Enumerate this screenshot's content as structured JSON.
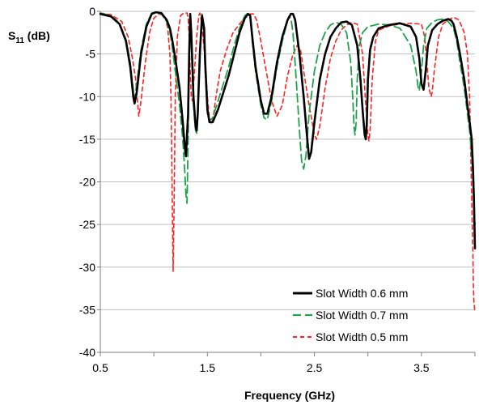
{
  "chart_data": {
    "type": "line",
    "title": "",
    "xlabel": "Frequency (GHz)",
    "ylabel": "S11 (dB)",
    "ylabel_parts": {
      "main": "S",
      "sub": "11",
      "tail": " (dB)"
    },
    "xlim": [
      0.5,
      4.0
    ],
    "ylim": [
      -40,
      0
    ],
    "x_ticks": [
      0.5,
      1.5,
      2.5,
      3.5
    ],
    "x_tick_labels": [
      "0.5",
      "1.5",
      "2.5",
      "3.5"
    ],
    "y_ticks": [
      0,
      -5,
      -10,
      -15,
      -20,
      -25,
      -30,
      -35,
      -40
    ],
    "y_tick_labels": [
      "0",
      "-5",
      "-10",
      "-15",
      "-20",
      "-25",
      "-30",
      "-35",
      "-40"
    ],
    "grid": "horizontal",
    "legend_position": "bottom-right",
    "series": [
      {
        "name": "Slot Width 0.6 mm",
        "color": "#000000",
        "dash": "solid",
        "x": [
          0.5,
          0.6,
          0.68,
          0.74,
          0.78,
          0.81,
          0.82,
          0.84,
          0.88,
          0.93,
          0.98,
          1.02,
          1.07,
          1.12,
          1.15,
          1.17,
          1.2,
          1.24,
          1.27,
          1.29,
          1.3,
          1.32,
          1.33,
          1.34,
          1.35,
          1.37,
          1.39,
          1.4,
          1.41,
          1.43,
          1.45,
          1.47,
          1.48,
          1.5,
          1.52,
          1.55,
          1.6,
          1.65,
          1.7,
          1.75,
          1.8,
          1.85,
          1.88,
          1.9,
          1.92,
          1.95,
          2.0,
          2.03,
          2.06,
          2.1,
          2.15,
          2.2,
          2.25,
          2.28,
          2.3,
          2.32,
          2.36,
          2.4,
          2.43,
          2.45,
          2.47,
          2.5,
          2.55,
          2.6,
          2.65,
          2.7,
          2.75,
          2.8,
          2.85,
          2.9,
          2.93,
          2.95,
          2.97,
          2.98,
          2.99,
          3.0,
          3.02,
          3.05,
          3.1,
          3.2,
          3.3,
          3.4,
          3.45,
          3.48,
          3.5,
          3.52,
          3.54,
          3.56,
          3.6,
          3.65,
          3.7,
          3.75,
          3.78,
          3.8,
          3.83,
          3.86,
          3.9,
          3.93,
          3.95,
          3.97,
          3.98,
          3.99,
          4.0
        ],
        "y": [
          -0.3,
          -0.6,
          -1.5,
          -3.5,
          -6.5,
          -10.2,
          -10.8,
          -9.5,
          -5,
          -1.8,
          -0.3,
          -0.1,
          -0.2,
          -1.0,
          -2.0,
          -3.2,
          -5.5,
          -9.0,
          -13.0,
          -16.0,
          -17.0,
          -12.0,
          -5.0,
          -0.3,
          -2.5,
          -10.0,
          -13.5,
          -14.0,
          -12.0,
          -5.0,
          -0.5,
          -2.0,
          -6.0,
          -11.5,
          -13.0,
          -13.0,
          -11.5,
          -9.5,
          -7.5,
          -5.0,
          -2.5,
          -0.8,
          -0.3,
          -0.5,
          -3.0,
          -6.5,
          -10.5,
          -12.0,
          -12.0,
          -10.0,
          -6.0,
          -3.0,
          -1.0,
          -0.3,
          -0.3,
          -1.0,
          -5.0,
          -10.0,
          -14.5,
          -17.3,
          -16.5,
          -13.0,
          -8.0,
          -5.0,
          -3.0,
          -2.0,
          -1.3,
          -1.2,
          -1.6,
          -4.0,
          -8.0,
          -11.5,
          -14.5,
          -15.0,
          -13.0,
          -8.0,
          -4.5,
          -3.0,
          -2.0,
          -1.6,
          -1.4,
          -1.8,
          -3.0,
          -5.5,
          -8.5,
          -9.2,
          -7.0,
          -4.0,
          -2.2,
          -1.5,
          -1.1,
          -0.9,
          -1.1,
          -1.5,
          -3.0,
          -5.0,
          -8.0,
          -11.0,
          -13.0,
          -15.0,
          -18.0,
          -22.0,
          -27.8
        ]
      },
      {
        "name": "Slot Width 0.7 mm",
        "color": "#1ea24a",
        "dash": "long-dash",
        "x": [
          0.5,
          0.6,
          0.68,
          0.74,
          0.78,
          0.81,
          0.82,
          0.84,
          0.88,
          0.93,
          0.98,
          1.02,
          1.07,
          1.12,
          1.15,
          1.17,
          1.2,
          1.24,
          1.27,
          1.29,
          1.3,
          1.31,
          1.32,
          1.33,
          1.34,
          1.35,
          1.37,
          1.39,
          1.4,
          1.41,
          1.43,
          1.45,
          1.47,
          1.48,
          1.5,
          1.52,
          1.55,
          1.6,
          1.65,
          1.7,
          1.75,
          1.8,
          1.85,
          1.88,
          1.9,
          1.92,
          1.95,
          2.0,
          2.03,
          2.06,
          2.1,
          2.15,
          2.2,
          2.24,
          2.26,
          2.28,
          2.3,
          2.33,
          2.36,
          2.38,
          2.4,
          2.42,
          2.45,
          2.5,
          2.55,
          2.6,
          2.65,
          2.7,
          2.75,
          2.8,
          2.84,
          2.86,
          2.87,
          2.88,
          2.89,
          2.9,
          2.92,
          2.95,
          3.0,
          3.1,
          3.2,
          3.3,
          3.4,
          3.45,
          3.47,
          3.48,
          3.5,
          3.52,
          3.55,
          3.6,
          3.65,
          3.7,
          3.75,
          3.8,
          3.83,
          3.86,
          3.9,
          3.93,
          3.95,
          3.97,
          3.98,
          3.99,
          4.0
        ],
        "y": [
          -0.2,
          -0.5,
          -1.4,
          -3.3,
          -6.0,
          -9.5,
          -10.3,
          -8.5,
          -4.5,
          -1.5,
          -0.2,
          -0.1,
          -0.3,
          -1.2,
          -2.5,
          -4.0,
          -7.0,
          -11.0,
          -15.0,
          -19.0,
          -21.5,
          -22.5,
          -15.0,
          -5.0,
          -0.3,
          -3.0,
          -11.0,
          -14.0,
          -14.3,
          -12.0,
          -5.0,
          -0.3,
          -2.5,
          -7.0,
          -12.0,
          -12.8,
          -12.5,
          -10.5,
          -8.5,
          -6.5,
          -4.0,
          -2.0,
          -0.5,
          -0.2,
          -0.5,
          -3.5,
          -7.0,
          -11.0,
          -12.5,
          -12.7,
          -10.5,
          -6.5,
          -3.5,
          -1.5,
          -0.6,
          -0.8,
          -2.5,
          -8.0,
          -14.0,
          -17.5,
          -18.5,
          -17.0,
          -12.0,
          -7.0,
          -4.0,
          -2.5,
          -1.6,
          -1.3,
          -1.5,
          -2.5,
          -6.0,
          -10.5,
          -13.5,
          -14.5,
          -13.0,
          -8.0,
          -4.0,
          -2.5,
          -1.8,
          -1.5,
          -1.6,
          -2.0,
          -4.0,
          -7.0,
          -9.0,
          -9.3,
          -7.0,
          -4.0,
          -2.0,
          -1.3,
          -1.0,
          -0.9,
          -1.2,
          -2.0,
          -3.5,
          -6.0,
          -9.0,
          -12.0,
          -14.0,
          -17.0,
          -19.0,
          -22.0,
          -25.0
        ]
      },
      {
        "name": "Slot Width 0.5 mm",
        "color": "#ff2020",
        "dash": "short-dash",
        "x": [
          0.5,
          0.6,
          0.7,
          0.76,
          0.8,
          0.83,
          0.85,
          0.86,
          0.88,
          0.92,
          0.96,
          1.0,
          1.05,
          1.1,
          1.13,
          1.15,
          1.16,
          1.17,
          1.18,
          1.19,
          1.2,
          1.22,
          1.25,
          1.28,
          1.31,
          1.32,
          1.33,
          1.34,
          1.35,
          1.36,
          1.38,
          1.4,
          1.42,
          1.43,
          1.44,
          1.46,
          1.48,
          1.5,
          1.52,
          1.54,
          1.56,
          1.58,
          1.62,
          1.68,
          1.74,
          1.8,
          1.86,
          1.9,
          1.93,
          1.96,
          2.0,
          2.05,
          2.1,
          2.15,
          2.2,
          2.25,
          2.3,
          2.34,
          2.37,
          2.4,
          2.45,
          2.5,
          2.52,
          2.55,
          2.6,
          2.65,
          2.7,
          2.75,
          2.8,
          2.85,
          2.9,
          2.95,
          2.98,
          3.0,
          3.01,
          3.02,
          3.04,
          3.07,
          3.1,
          3.2,
          3.3,
          3.4,
          3.5,
          3.53,
          3.55,
          3.57,
          3.59,
          3.6,
          3.62,
          3.66,
          3.7,
          3.75,
          3.8,
          3.85,
          3.9,
          3.93,
          3.95,
          3.96,
          3.97,
          3.98,
          3.985,
          3.99,
          4.0
        ],
        "y": [
          -0.2,
          -0.4,
          -1.2,
          -3.0,
          -5.5,
          -8.0,
          -11.0,
          -12.3,
          -10.5,
          -6.0,
          -2.5,
          -0.8,
          -0.3,
          -0.5,
          -2.0,
          -5.0,
          -10.0,
          -20.0,
          -30.5,
          -22.0,
          -10.0,
          -3.0,
          -0.5,
          -0.2,
          -0.2,
          -0.8,
          -3.0,
          -7.0,
          -10.0,
          -10.5,
          -7.0,
          -3.0,
          -0.5,
          -0.2,
          -0.8,
          -3.0,
          -6.0,
          -10.0,
          -12.8,
          -13.2,
          -12.0,
          -10.0,
          -7.0,
          -4.5,
          -2.5,
          -1.5,
          -0.6,
          -0.3,
          -0.3,
          -1.0,
          -3.5,
          -7.0,
          -10.5,
          -12.3,
          -11.0,
          -7.5,
          -5.0,
          -4.0,
          -4.5,
          -7.0,
          -11.0,
          -14.5,
          -15.0,
          -13.5,
          -9.0,
          -5.5,
          -3.5,
          -2.2,
          -1.6,
          -1.3,
          -1.5,
          -5.0,
          -11.0,
          -14.5,
          -15.2,
          -14.0,
          -8.0,
          -3.5,
          -2.2,
          -1.7,
          -1.5,
          -1.4,
          -1.5,
          -3.0,
          -6.0,
          -9.0,
          -10.0,
          -9.5,
          -7.0,
          -3.0,
          -1.5,
          -1.0,
          -0.7,
          -1.0,
          -2.5,
          -5.0,
          -10.0,
          -16.0,
          -22.0,
          -28.0,
          -32.0,
          -34.0,
          -35.3
        ]
      }
    ]
  }
}
